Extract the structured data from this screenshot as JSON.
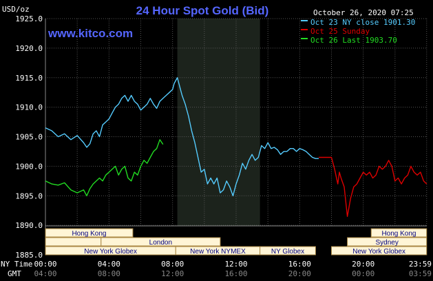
{
  "chart_data": {
    "type": "line",
    "title": "24 Hour Spot Gold (Bid)",
    "watermark": "www.kitco.com",
    "timestamp": "October 26, 2020 07:25",
    "y_unit_label": "USD/oz",
    "ylim": [
      1885.0,
      1925.0
    ],
    "y_ticks": [
      "1925.0",
      "1920.0",
      "1915.0",
      "1910.0",
      "1905.0",
      "1900.0",
      "1895.0",
      "1890.0",
      "1885.0"
    ],
    "y_tick_values": [
      1925,
      1920,
      1915,
      1910,
      1905,
      1900,
      1895,
      1890,
      1885
    ],
    "x_range_hours": [
      0,
      24
    ],
    "x_ticks_ny": [
      "00:00",
      "04:00",
      "08:00",
      "12:00",
      "16:00",
      "20:00",
      "23:59"
    ],
    "x_ticks_gmt": [
      "04:00",
      "08:00",
      "12:00",
      "16:00",
      "20:00",
      "00:00",
      "03:59"
    ],
    "x_tick_hours": [
      0,
      4,
      8,
      12,
      16,
      20,
      24
    ],
    "x_axis_label_ny": "NY Time",
    "x_axis_label_gmt": "GMT",
    "grid": true,
    "legend_position": "top-right",
    "colors": {
      "background": "#000000",
      "grid": "#555555",
      "title": "#5566ff",
      "axis_text": "#ffffff",
      "session_shade": "#1c231c",
      "session_bar_bg": "#fff5d6",
      "session_bar_text": "#000080"
    },
    "shaded_period_hours": [
      8.3,
      13.5
    ],
    "series": [
      {
        "name": "Oct 23 NY close 1901.30",
        "color": "#55ccff",
        "x": [
          0,
          0.4,
          0.8,
          1.2,
          1.6,
          2.0,
          2.4,
          2.6,
          2.8,
          3.0,
          3.2,
          3.4,
          3.6,
          3.8,
          4.0,
          4.2,
          4.4,
          4.6,
          4.8,
          5.0,
          5.2,
          5.4,
          5.6,
          5.8,
          6.0,
          6.2,
          6.4,
          6.6,
          6.8,
          7.0,
          7.2,
          7.4,
          7.6,
          7.8,
          8.0,
          8.1,
          8.2,
          8.3,
          8.4,
          8.6,
          8.8,
          9.0,
          9.2,
          9.4,
          9.6,
          9.8,
          10.0,
          10.2,
          10.4,
          10.6,
          10.8,
          11.0,
          11.2,
          11.4,
          11.6,
          11.8,
          12.0,
          12.2,
          12.4,
          12.6,
          12.8,
          13.0,
          13.2,
          13.4,
          13.6,
          13.8,
          14.0,
          14.2,
          14.4,
          14.6,
          14.8,
          15.0,
          15.2,
          15.4,
          15.6,
          15.8,
          16.0,
          16.2,
          16.4,
          16.6,
          16.8,
          17.0,
          17.2
        ],
        "y": [
          1906.5,
          1906.0,
          1905.0,
          1905.5,
          1904.5,
          1905.2,
          1904.0,
          1903.2,
          1903.8,
          1905.5,
          1906.0,
          1905.0,
          1907.0,
          1907.5,
          1908.0,
          1909.0,
          1910.0,
          1910.5,
          1911.5,
          1912.0,
          1911.0,
          1912.0,
          1911.0,
          1910.5,
          1909.5,
          1910.0,
          1910.5,
          1911.5,
          1910.5,
          1909.8,
          1911.0,
          1911.5,
          1912.0,
          1912.5,
          1913.0,
          1914.0,
          1914.5,
          1915.0,
          1914.0,
          1912.0,
          1910.5,
          1908.5,
          1906.0,
          1904.0,
          1901.5,
          1899.0,
          1899.5,
          1897.0,
          1898.0,
          1897.0,
          1898.0,
          1895.5,
          1896.0,
          1897.5,
          1896.5,
          1895.0,
          1897.0,
          1898.5,
          1900.5,
          1899.5,
          1901.0,
          1902.0,
          1901.0,
          1901.5,
          1903.5,
          1903.0,
          1904.0,
          1903.0,
          1903.2,
          1902.8,
          1902.0,
          1902.5,
          1902.5,
          1903.0,
          1903.0,
          1902.5,
          1903.0,
          1902.8,
          1902.5,
          1902.0,
          1901.5,
          1901.3,
          1901.3
        ]
      },
      {
        "name": "Oct 25 Sunday",
        "color": "#dd0000",
        "x": [
          17.2,
          17.6,
          18.0,
          18.2,
          18.4,
          18.5,
          18.6,
          18.8,
          19.0,
          19.2,
          19.4,
          19.6,
          19.8,
          20.0,
          20.2,
          20.4,
          20.6,
          20.8,
          21.0,
          21.2,
          21.4,
          21.6,
          21.8,
          22.0,
          22.2,
          22.4,
          22.6,
          22.8,
          23.0,
          23.2,
          23.4,
          23.6,
          23.8,
          23.99
        ],
        "y": [
          1901.5,
          1901.5,
          1901.5,
          1899.5,
          1897.0,
          1899.0,
          1898.0,
          1896.5,
          1891.5,
          1894.5,
          1896.5,
          1897.0,
          1898.0,
          1899.0,
          1898.5,
          1899.0,
          1898.0,
          1898.5,
          1900.0,
          1899.5,
          1900.0,
          1901.0,
          1900.0,
          1897.5,
          1898.0,
          1897.0,
          1898.0,
          1898.5,
          1900.0,
          1899.0,
          1898.5,
          1899.0,
          1897.5,
          1897.0
        ]
      },
      {
        "name": "Oct 26 Last 1903.70",
        "color": "#22dd22",
        "x": [
          0,
          0.4,
          0.8,
          1.2,
          1.6,
          2.0,
          2.4,
          2.6,
          2.8,
          3.0,
          3.2,
          3.4,
          3.6,
          3.8,
          4.0,
          4.2,
          4.4,
          4.6,
          4.8,
          5.0,
          5.2,
          5.4,
          5.6,
          5.8,
          6.0,
          6.2,
          6.4,
          6.6,
          6.8,
          7.0,
          7.2,
          7.4
        ],
        "y": [
          1897.5,
          1897.0,
          1896.8,
          1897.2,
          1896.0,
          1895.5,
          1896.0,
          1895.0,
          1896.2,
          1897.0,
          1897.5,
          1898.0,
          1897.5,
          1898.5,
          1899.0,
          1899.5,
          1900.0,
          1898.5,
          1899.5,
          1900.0,
          1898.0,
          1897.5,
          1899.0,
          1898.5,
          1900.0,
          1901.0,
          1900.5,
          1901.5,
          1902.5,
          1903.0,
          1904.5,
          1903.7
        ]
      }
    ],
    "session_rows": [
      {
        "row": 1,
        "sessions": [
          {
            "label": "Hong Kong",
            "start_hour": 0,
            "end_hour": 5.5
          },
          {
            "label": "Hong Kong",
            "start_hour": 20.5,
            "end_hour": 23.99
          }
        ]
      },
      {
        "row": 2,
        "sessions": [
          {
            "label": "",
            "start_hour": 0,
            "end_hour": 3.5
          },
          {
            "label": "London",
            "start_hour": 3.5,
            "end_hour": 11.0
          },
          {
            "label": "Sydney",
            "start_hour": 19.0,
            "end_hour": 23.99
          }
        ]
      },
      {
        "row": 3,
        "sessions": [
          {
            "label": "New York Globex",
            "start_hour": 0,
            "end_hour": 8.2
          },
          {
            "label": "New York NYMEX",
            "start_hour": 8.2,
            "end_hour": 13.5
          },
          {
            "label": "NY Globex",
            "start_hour": 13.5,
            "end_hour": 17.0
          },
          {
            "label": "New York Globex",
            "start_hour": 18.0,
            "end_hour": 23.99
          }
        ]
      }
    ]
  }
}
